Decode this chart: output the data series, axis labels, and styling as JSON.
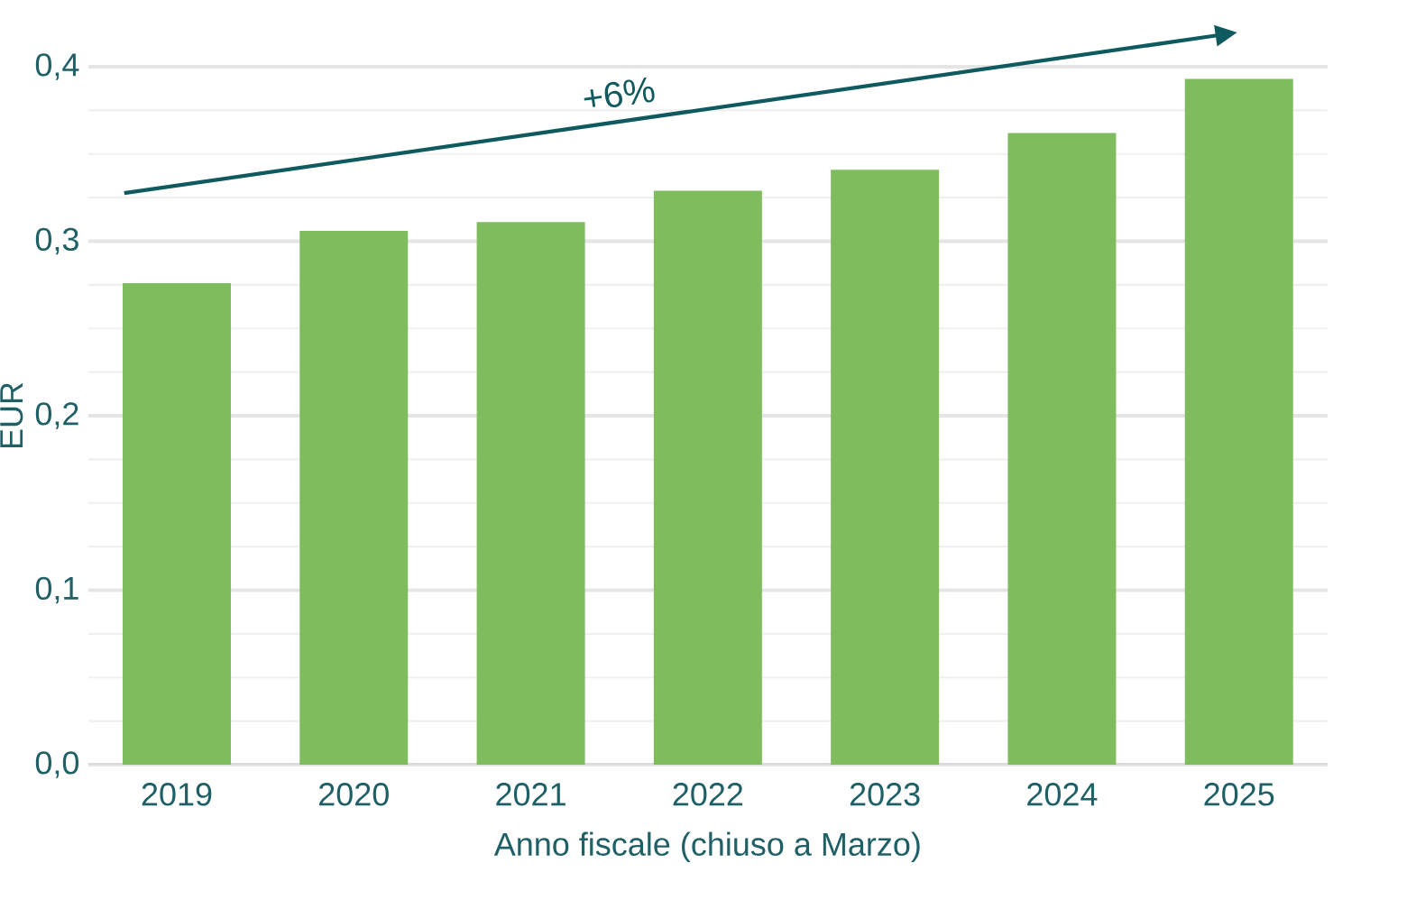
{
  "chart_data": {
    "type": "bar",
    "categories": [
      "2019",
      "2020",
      "2021",
      "2022",
      "2023",
      "2024",
      "2025"
    ],
    "values": [
      0.276,
      0.306,
      0.311,
      0.329,
      0.341,
      0.362,
      0.393
    ],
    "color": "#7fbc5e",
    "xlabel": "Anno fiscale (chiuso a Marzo)",
    "ylabel": "EUR",
    "ylim": [
      0,
      0.4
    ],
    "yticks": [
      {
        "value": 0,
        "label": "0,0"
      },
      {
        "value": 0.1,
        "label": "0,1"
      },
      {
        "value": 0.2,
        "label": "0,2"
      },
      {
        "value": 0.3,
        "label": "0,3"
      },
      {
        "value": 0.4,
        "label": "0,4"
      }
    ],
    "grid": "y",
    "annotations": [
      "+6%"
    ]
  }
}
